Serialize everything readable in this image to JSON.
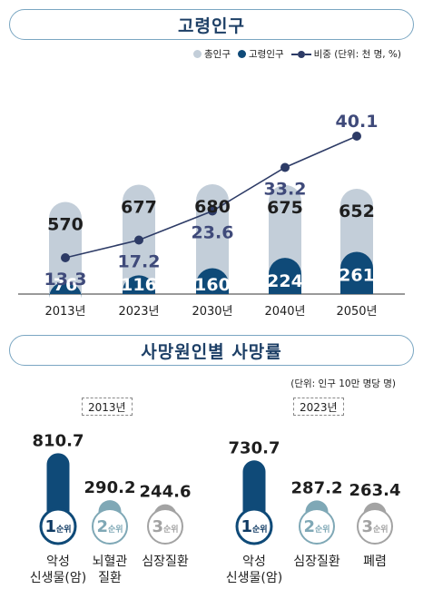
{
  "headers": {
    "elderly_title": "고령인구",
    "death_title": "사망원인별 사망률"
  },
  "legend": {
    "total": "총인구",
    "elderly": "고령인구",
    "ratio": "비중 (단위: 천 명, %)"
  },
  "death_unit": "(단위: 인구 10만 명당 명)",
  "colors": {
    "total": "#c3ced9",
    "elderly": "#0f4a78",
    "line": "#2d3b66",
    "ratio_text": "#3f4a7a",
    "teal": "#7fa8b6",
    "gray": "#a3a3a3"
  },
  "chart_data": [
    {
      "type": "bar",
      "title": "고령인구",
      "categories": [
        "2013년",
        "2023년",
        "2030년",
        "2040년",
        "2050년"
      ],
      "series": [
        {
          "name": "총인구",
          "values": [
            570,
            677,
            680,
            675,
            652
          ]
        },
        {
          "name": "고령인구",
          "values": [
            76,
            116,
            160,
            224,
            261
          ]
        },
        {
          "name": "비중",
          "type": "line",
          "values": [
            13.3,
            17.2,
            23.6,
            33.2,
            40.1
          ]
        }
      ]
    },
    {
      "type": "bar",
      "title": "사망원인별 사망률",
      "groups": [
        {
          "year": "2013년",
          "items": [
            {
              "rank_num": "1",
              "rank_word": "순위",
              "cause": [
                "악성",
                "신생물(암)"
              ],
              "value": 810.7,
              "color": "#0f4a78"
            },
            {
              "rank_num": "2",
              "rank_word": "순위",
              "cause": [
                "뇌혈관",
                "질환"
              ],
              "value": 290.2,
              "color": "#7fa8b6"
            },
            {
              "rank_num": "3",
              "rank_word": "순위",
              "cause": [
                "심장질환"
              ],
              "value": 244.6,
              "color": "#a3a3a3"
            }
          ]
        },
        {
          "year": "2023년",
          "items": [
            {
              "rank_num": "1",
              "rank_word": "순위",
              "cause": [
                "악성",
                "신생물(암)"
              ],
              "value": 730.7,
              "color": "#0f4a78"
            },
            {
              "rank_num": "2",
              "rank_word": "순위",
              "cause": [
                "심장질환"
              ],
              "value": 287.2,
              "color": "#7fa8b6"
            },
            {
              "rank_num": "3",
              "rank_word": "순위",
              "cause": [
                "폐렴"
              ],
              "value": 263.4,
              "color": "#a3a3a3"
            }
          ]
        }
      ]
    }
  ]
}
